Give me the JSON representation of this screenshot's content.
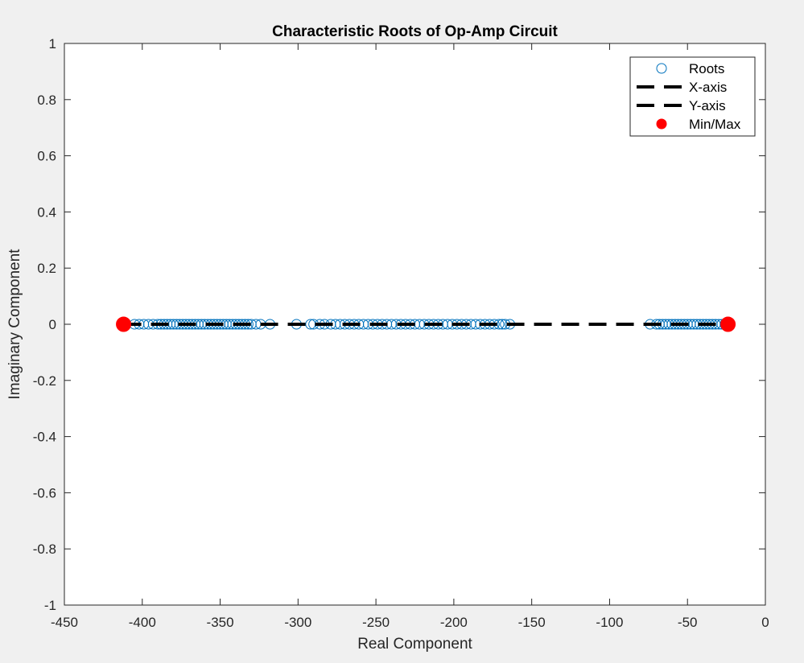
{
  "chart_data": {
    "type": "scatter",
    "title": "Characteristic Roots of Op-Amp Circuit",
    "xlabel": "Real Component",
    "ylabel": "Imaginary Component",
    "xlim": [
      -450,
      0
    ],
    "ylim": [
      -1,
      1
    ],
    "xticks": [
      -450,
      -400,
      -350,
      -300,
      -250,
      -200,
      -150,
      -100,
      -50,
      0
    ],
    "xtick_labels": [
      "-450",
      "-400",
      "-350",
      "-300",
      "-250",
      "-200",
      "-150",
      "-100",
      "-50",
      "0"
    ],
    "yticks": [
      -1,
      -0.8,
      -0.6,
      -0.4,
      -0.2,
      0,
      0.2,
      0.4,
      0.6,
      0.8,
      1
    ],
    "ytick_labels": [
      "-1",
      "-0.8",
      "-0.6",
      "-0.4",
      "-0.2",
      "0",
      "0.2",
      "0.4",
      "0.6",
      "0.8",
      "1"
    ],
    "grid": false,
    "legend_position": "top-right",
    "background": "#ffffff",
    "series": [
      {
        "name": "Roots",
        "kind": "scatter-open-circle",
        "color": "#0072bd",
        "x": [
          -405,
          -402,
          -399,
          -396,
          -393,
          -390,
          -388,
          -386,
          -384,
          -382,
          -380,
          -378,
          -376,
          -374,
          -372,
          -370,
          -368,
          -366,
          -364,
          -362,
          -360,
          -358,
          -356,
          -354,
          -352,
          -350,
          -348,
          -346,
          -344,
          -342,
          -340,
          -338,
          -336,
          -334,
          -332,
          -330,
          -327,
          -324,
          -318,
          -301,
          -292,
          -290,
          -286,
          -283,
          -279,
          -276,
          -273,
          -270,
          -267,
          -264,
          -261,
          -258,
          -255,
          -252,
          -249,
          -246,
          -243,
          -240,
          -237,
          -234,
          -231,
          -228,
          -225,
          -222,
          -219,
          -216,
          -213,
          -210,
          -207,
          -204,
          -201,
          -198,
          -195,
          -192,
          -189,
          -186,
          -183,
          -180,
          -177,
          -174,
          -171,
          -169,
          -167,
          -164,
          -74,
          -70,
          -68,
          -66,
          -64,
          -62,
          -60,
          -58,
          -56,
          -54,
          -52,
          -50,
          -48,
          -46,
          -44,
          -42,
          -40,
          -38,
          -36,
          -34,
          -32,
          -30,
          -28,
          -26
        ],
        "y": [
          0,
          0,
          0,
          0,
          0,
          0,
          0,
          0,
          0,
          0,
          0,
          0,
          0,
          0,
          0,
          0,
          0,
          0,
          0,
          0,
          0,
          0,
          0,
          0,
          0,
          0,
          0,
          0,
          0,
          0,
          0,
          0,
          0,
          0,
          0,
          0,
          0,
          0,
          0,
          0,
          0,
          0,
          0,
          0,
          0,
          0,
          0,
          0,
          0,
          0,
          0,
          0,
          0,
          0,
          0,
          0,
          0,
          0,
          0,
          0,
          0,
          0,
          0,
          0,
          0,
          0,
          0,
          0,
          0,
          0,
          0,
          0,
          0,
          0,
          0,
          0,
          0,
          0,
          0,
          0,
          0,
          0,
          0,
          0,
          0,
          0,
          0,
          0,
          0,
          0,
          0,
          0,
          0,
          0,
          0,
          0,
          0,
          0,
          0,
          0,
          0,
          0,
          0,
          0,
          0,
          0,
          0,
          0
        ]
      },
      {
        "name": "X-axis",
        "kind": "line-dashed",
        "color": "#000000",
        "x": [
          -412,
          -24
        ],
        "y": [
          0,
          0
        ]
      },
      {
        "name": "Y-axis",
        "kind": "line-dashed",
        "color": "#000000",
        "x": [
          0,
          0
        ],
        "y": [
          0,
          0
        ]
      },
      {
        "name": "Min/Max",
        "kind": "scatter-filled",
        "color": "#ff0000",
        "x": [
          -412,
          -24
        ],
        "y": [
          0,
          0
        ]
      }
    ]
  }
}
